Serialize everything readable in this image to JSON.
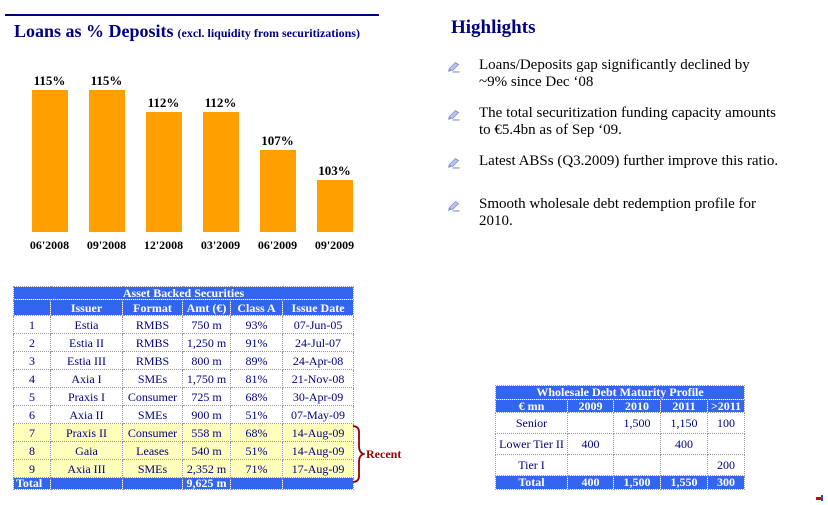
{
  "chart_data": {
    "type": "bar",
    "title": "Loans as % Deposits (excl. liquidity from securitizations)",
    "title_main": "Loans as % Deposits",
    "title_sub": "(excl. liquidity from securitizations)",
    "categories": [
      "06'2008",
      "09'2008",
      "12'2008",
      "03'2009",
      "06'2009",
      "09'2009"
    ],
    "values": [
      115,
      115,
      112,
      112,
      107,
      103
    ],
    "data_labels": [
      "115%",
      "115%",
      "112%",
      "112%",
      "107%",
      "103%"
    ],
    "bar_color": "#FFA000",
    "ylim": [
      96,
      120
    ],
    "xlabel": "",
    "ylabel": "",
    "grid": false,
    "legend": false
  },
  "highlights": {
    "title": "Highlights",
    "bullet_icon": "writing-hand",
    "items": [
      {
        "lines": [
          "Loans/Deposits gap significantly declined by",
          "~9% since Dec ‘08"
        ]
      },
      {
        "lines": [
          "The total securitization funding capacity amounts",
          "to €5.4bn as of Sep ‘09."
        ]
      },
      {
        "lines": [
          "Latest ABSs (Q3.2009) further improve this ratio."
        ]
      },
      {
        "lines": [
          "Smooth wholesale debt redemption profile for",
          "2010."
        ]
      }
    ]
  },
  "abs_table": {
    "title": "Asset Backed Securities",
    "columns": [
      "",
      "Issuer",
      "Format",
      "Amt (€)",
      "Class A",
      "Issue Date"
    ],
    "rows": [
      {
        "num": "1",
        "issuer": "Estia",
        "format": "RMBS",
        "amt": "750 m",
        "class_a": "93%",
        "date": "07-Jun-05",
        "recent": false
      },
      {
        "num": "2",
        "issuer": "Estia II",
        "format": "RMBS",
        "amt": "1,250 m",
        "class_a": "91%",
        "date": "24-Jul-07",
        "recent": false
      },
      {
        "num": "3",
        "issuer": "Estia III",
        "format": "RMBS",
        "amt": "800 m",
        "class_a": "89%",
        "date": "24-Apr-08",
        "recent": false
      },
      {
        "num": "4",
        "issuer": "Axia I",
        "format": "SMEs",
        "amt": "1,750 m",
        "class_a": "81%",
        "date": "21-Nov-08",
        "recent": false
      },
      {
        "num": "5",
        "issuer": "Praxis I",
        "format": "Consumer",
        "amt": "725 m",
        "class_a": "68%",
        "date": "30-Apr-09",
        "recent": false
      },
      {
        "num": "6",
        "issuer": "Axia II",
        "format": "SMEs",
        "amt": "900 m",
        "class_a": "51%",
        "date": "07-May-09",
        "recent": false
      },
      {
        "num": "7",
        "issuer": "Praxis II",
        "format": "Consumer",
        "amt": "558 m",
        "class_a": "68%",
        "date": "14-Aug-09",
        "recent": true
      },
      {
        "num": "8",
        "issuer": "Gaia",
        "format": "Leases",
        "amt": "540 m",
        "class_a": "51%",
        "date": "14-Aug-09",
        "recent": true
      },
      {
        "num": "9",
        "issuer": "Axia III",
        "format": "SMEs",
        "amt": "2,352 m",
        "class_a": "71%",
        "date": "17-Aug-09",
        "recent": true
      }
    ],
    "total_label": "Total",
    "total_amt": "9,625 m",
    "recent_label": "Recent"
  },
  "wholesale_table": {
    "title": "Wholesale Debt Maturity Profile",
    "columns": [
      "€ mn",
      "2009",
      "2010",
      "2011",
      ">2011"
    ],
    "rows": [
      {
        "label": "Senior",
        "y2009": "",
        "y2010": "1,500",
        "y2011": "1,150",
        "after2011": "100"
      },
      {
        "label": "Lower Tier II",
        "y2009": "400",
        "y2010": "",
        "y2011": "400",
        "after2011": ""
      },
      {
        "label": "Tier I",
        "y2009": "",
        "y2010": "",
        "y2011": "",
        "after2011": "200"
      }
    ],
    "total": {
      "label": "Total",
      "y2009": "400",
      "y2010": "1,500",
      "y2011": "1,550",
      "after2011": "300"
    }
  },
  "colors": {
    "accent_blue": "#3366F0",
    "bar_orange": "#FFA000",
    "row_yellow": "#FFFFBB",
    "navy": "#000080",
    "recent_red": "#990000",
    "border_gray": "#999999"
  }
}
